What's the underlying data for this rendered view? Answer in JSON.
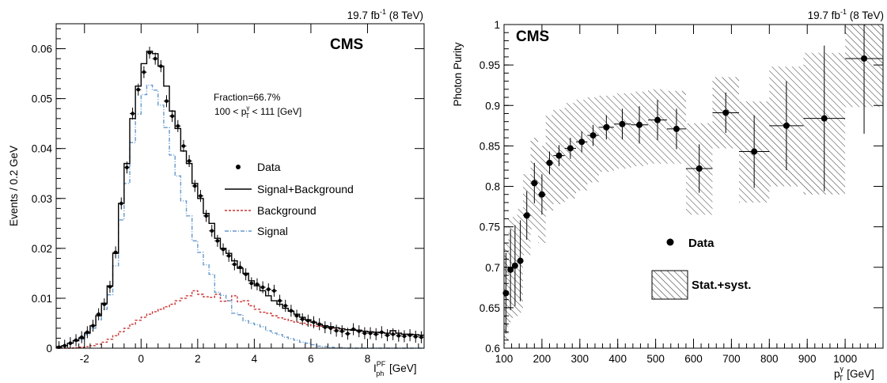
{
  "chart_data": [
    {
      "type": "line",
      "lumi_label": "19.7 fb",
      "lumi_sup": "-1",
      "lumi_energy": " (8 TeV)",
      "cms_label": "CMS",
      "xlabel_main": "I",
      "xlabel_sup": "PF",
      "xlabel_sub": "ph",
      "xlabel_unit": " [GeV]",
      "ylabel": "Events / 0.2 GeV",
      "xlim": [
        -3,
        10
      ],
      "ylim": [
        0,
        0.065
      ],
      "x_ticks": [
        -2,
        0,
        2,
        4,
        6,
        8
      ],
      "x_tick_labels": [
        "-2",
        "0",
        "2",
        "4",
        "6",
        "8"
      ],
      "y_ticks": [
        0,
        0.01,
        0.02,
        0.03,
        0.04,
        0.05,
        0.06
      ],
      "y_tick_labels": [
        "0",
        "0.01",
        "0.02",
        "0.03",
        "0.04",
        "0.05",
        "0.06"
      ],
      "annotation_line1": "Fraction=66.7%",
      "annotation_line2_pre": "100 < p",
      "annotation_line2_sup": "γ",
      "annotation_line2_sub": "T",
      "annotation_line2_post": " < 111 [GeV]",
      "legend": {
        "data": "Data",
        "total": "Signal+Background",
        "background": "Background",
        "signal": "Signal"
      },
      "bin_width": 0.2,
      "series_color": {
        "total": "#000000",
        "background": "#cc3333",
        "signal": "#6699cc",
        "data": "#000000"
      },
      "bin_edges_start": -3.0,
      "total": [
        0.0003,
        0.0005,
        0.001,
        0.0015,
        0.002,
        0.003,
        0.0045,
        0.0065,
        0.009,
        0.0125,
        0.019,
        0.029,
        0.037,
        0.046,
        0.0525,
        0.057,
        0.0595,
        0.059,
        0.0565,
        0.0525,
        0.0475,
        0.044,
        0.0395,
        0.037,
        0.033,
        0.03,
        0.027,
        0.025,
        0.022,
        0.02,
        0.019,
        0.0175,
        0.016,
        0.015,
        0.0135,
        0.0125,
        0.0115,
        0.0105,
        0.0095,
        0.0088,
        0.008,
        0.0074,
        0.0068,
        0.0062,
        0.0057,
        0.0052,
        0.0048,
        0.0045,
        0.0043,
        0.0041,
        0.0039,
        0.0037,
        0.0036,
        0.0036,
        0.0034,
        0.0033,
        0.0032,
        0.0031,
        0.003,
        0.0035,
        0.003,
        0.0028,
        0.0028,
        0.0027,
        0.0026
      ],
      "background": [
        0.0,
        0.0,
        0.0,
        0.0001,
        0.0002,
        0.0003,
        0.0005,
        0.0008,
        0.0012,
        0.0018,
        0.0025,
        0.0033,
        0.004,
        0.0048,
        0.0056,
        0.0062,
        0.0068,
        0.0073,
        0.0078,
        0.0083,
        0.0088,
        0.0095,
        0.01,
        0.0105,
        0.0115,
        0.0108,
        0.0103,
        0.0102,
        0.0108,
        0.0094,
        0.0095,
        0.0105,
        0.0093,
        0.0095,
        0.0085,
        0.0078,
        0.0072,
        0.007,
        0.0065,
        0.0061,
        0.0058,
        0.0055,
        0.0052,
        0.005,
        0.0047,
        0.0045,
        0.0044,
        0.0042,
        0.0041,
        0.004,
        0.0038,
        0.0037,
        0.0036,
        0.0036,
        0.0034,
        0.0033,
        0.0032,
        0.0031,
        0.003,
        0.0035,
        0.003,
        0.0028,
        0.0028,
        0.0027,
        0.0026
      ],
      "signal": [
        0.0003,
        0.0005,
        0.001,
        0.0014,
        0.0018,
        0.0027,
        0.004,
        0.0057,
        0.0078,
        0.0107,
        0.0165,
        0.0257,
        0.033,
        0.0412,
        0.0469,
        0.0508,
        0.0527,
        0.0517,
        0.0487,
        0.0442,
        0.0387,
        0.0345,
        0.0295,
        0.0265,
        0.0215,
        0.0192,
        0.0167,
        0.0148,
        0.0112,
        0.0106,
        0.0095,
        0.007,
        0.0067,
        0.0055,
        0.005,
        0.0047,
        0.0043,
        0.0035,
        0.003,
        0.0027,
        0.0022,
        0.0019,
        0.0016,
        0.0012,
        0.001,
        0.0007,
        0.0004,
        0.0003,
        0.0002,
        0.0001,
        0.0001,
        0.0,
        0.0,
        0.0,
        0.0,
        0.0,
        0.0,
        0.0,
        0.0,
        0.0,
        0.0,
        0.0,
        0.0,
        0.0,
        0.0
      ],
      "data": [
        0.0002,
        0.0005,
        0.001,
        0.0016,
        0.0022,
        0.0032,
        0.0045,
        0.0068,
        0.0088,
        0.0123,
        0.0192,
        0.029,
        0.0362,
        0.047,
        0.0518,
        0.0553,
        0.0592,
        0.058,
        0.0565,
        0.0495,
        0.0465,
        0.0445,
        0.0405,
        0.0375,
        0.0325,
        0.0305,
        0.0265,
        0.0235,
        0.0215,
        0.0198,
        0.0185,
        0.0168,
        0.0162,
        0.0148,
        0.013,
        0.0128,
        0.0122,
        0.0118,
        0.0115,
        0.0095,
        0.0085,
        0.0075,
        0.0065,
        0.0058,
        0.0055,
        0.0052,
        0.0048,
        0.0042,
        0.004,
        0.0035,
        0.0034,
        0.0029,
        0.0038,
        0.0034,
        0.003,
        0.003,
        0.0028,
        0.0032,
        0.0026,
        0.0028,
        0.0025,
        0.0024,
        0.0026,
        0.0023,
        0.0022
      ],
      "data_err": 0.0012
    },
    {
      "type": "scatter",
      "lumi_label": "19.7 fb",
      "lumi_sup": "-1",
      "lumi_energy": " (8 TeV)",
      "cms_label": "CMS",
      "ylabel": "Photon Purity",
      "xlabel_main": "p",
      "xlabel_sup": "γ",
      "xlabel_sub": "T",
      "xlabel_unit": " [GeV]",
      "xlim": [
        100,
        1100
      ],
      "ylim": [
        0.6,
        1.0
      ],
      "x_ticks": [
        100,
        200,
        300,
        400,
        500,
        600,
        700,
        800,
        900,
        1000
      ],
      "x_tick_labels": [
        "100",
        "200",
        "300",
        "400",
        "500",
        "600",
        "700",
        "800",
        "900",
        "1000"
      ],
      "y_ticks": [
        0.6,
        0.65,
        0.7,
        0.75,
        0.8,
        0.85,
        0.9,
        0.95,
        1.0
      ],
      "y_tick_labels": [
        "0.6",
        "0.65",
        "0.7",
        "0.75",
        "0.8",
        "0.85",
        "0.9",
        "0.95",
        "1"
      ],
      "legend": {
        "data": "Data",
        "band": "Stat.+syst."
      },
      "points": [
        {
          "xlo": 100,
          "xhi": 111,
          "x": 105,
          "y": 0.668,
          "ylo": 0.618,
          "yhi": 0.718,
          "blo": 0.605,
          "bhi": 0.73
        },
        {
          "xlo": 111,
          "xhi": 123,
          "x": 117,
          "y": 0.697,
          "ylo": 0.647,
          "yhi": 0.747,
          "blo": 0.632,
          "bhi": 0.76
        },
        {
          "xlo": 123,
          "xhi": 136,
          "x": 129,
          "y": 0.702,
          "ylo": 0.652,
          "yhi": 0.752,
          "blo": 0.638,
          "bhi": 0.765
        },
        {
          "xlo": 136,
          "xhi": 150,
          "x": 143,
          "y": 0.708,
          "ylo": 0.658,
          "yhi": 0.758,
          "blo": 0.644,
          "bhi": 0.772
        },
        {
          "xlo": 150,
          "xhi": 170,
          "x": 160,
          "y": 0.764,
          "ylo": 0.734,
          "yhi": 0.794,
          "blo": 0.715,
          "bhi": 0.815
        },
        {
          "xlo": 170,
          "xhi": 190,
          "x": 180,
          "y": 0.804,
          "ylo": 0.779,
          "yhi": 0.829,
          "blo": 0.747,
          "bhi": 0.86
        },
        {
          "xlo": 190,
          "xhi": 210,
          "x": 200,
          "y": 0.79,
          "ylo": 0.765,
          "yhi": 0.815,
          "blo": 0.73,
          "bhi": 0.85
        },
        {
          "xlo": 210,
          "xhi": 230,
          "x": 220,
          "y": 0.829,
          "ylo": 0.815,
          "yhi": 0.843,
          "blo": 0.77,
          "bhi": 0.888
        },
        {
          "xlo": 230,
          "xhi": 260,
          "x": 245,
          "y": 0.838,
          "ylo": 0.825,
          "yhi": 0.851,
          "blo": 0.778,
          "bhi": 0.895
        },
        {
          "xlo": 260,
          "xhi": 290,
          "x": 275,
          "y": 0.847,
          "ylo": 0.834,
          "yhi": 0.86,
          "blo": 0.785,
          "bhi": 0.903
        },
        {
          "xlo": 290,
          "xhi": 320,
          "x": 305,
          "y": 0.855,
          "ylo": 0.842,
          "yhi": 0.868,
          "blo": 0.795,
          "bhi": 0.907
        },
        {
          "xlo": 320,
          "xhi": 350,
          "x": 335,
          "y": 0.863,
          "ylo": 0.85,
          "yhi": 0.876,
          "blo": 0.805,
          "bhi": 0.91
        },
        {
          "xlo": 350,
          "xhi": 390,
          "x": 370,
          "y": 0.873,
          "ylo": 0.858,
          "yhi": 0.888,
          "blo": 0.818,
          "bhi": 0.912
        },
        {
          "xlo": 390,
          "xhi": 435,
          "x": 412,
          "y": 0.877,
          "ylo": 0.858,
          "yhi": 0.896,
          "blo": 0.822,
          "bhi": 0.915
        },
        {
          "xlo": 435,
          "xhi": 480,
          "x": 457,
          "y": 0.876,
          "ylo": 0.853,
          "yhi": 0.899,
          "blo": 0.825,
          "bhi": 0.917
        },
        {
          "xlo": 480,
          "xhi": 530,
          "x": 505,
          "y": 0.882,
          "ylo": 0.857,
          "yhi": 0.907,
          "blo": 0.828,
          "bhi": 0.92
        },
        {
          "xlo": 530,
          "xhi": 580,
          "x": 555,
          "y": 0.871,
          "ylo": 0.846,
          "yhi": 0.896,
          "blo": 0.828,
          "bhi": 0.918
        },
        {
          "xlo": 580,
          "xhi": 650,
          "x": 615,
          "y": 0.822,
          "ylo": 0.792,
          "yhi": 0.852,
          "blo": 0.765,
          "bhi": 0.878
        },
        {
          "xlo": 650,
          "xhi": 720,
          "x": 685,
          "y": 0.891,
          "ylo": 0.866,
          "yhi": 0.916,
          "blo": 0.847,
          "bhi": 0.935
        },
        {
          "xlo": 720,
          "xhi": 800,
          "x": 760,
          "y": 0.843,
          "ylo": 0.798,
          "yhi": 0.888,
          "blo": 0.78,
          "bhi": 0.905
        },
        {
          "xlo": 800,
          "xhi": 890,
          "x": 845,
          "y": 0.875,
          "ylo": 0.82,
          "yhi": 0.93,
          "blo": 0.8,
          "bhi": 0.948
        },
        {
          "xlo": 890,
          "xhi": 1000,
          "x": 945,
          "y": 0.884,
          "ylo": 0.794,
          "yhi": 0.974,
          "blo": 0.79,
          "bhi": 0.965
        },
        {
          "xlo": 1000,
          "xhi": 1100,
          "x": 1050,
          "y": 0.958,
          "ylo": 0.865,
          "yhi": 1.0,
          "blo": 0.898,
          "bhi": 1.0
        }
      ]
    }
  ]
}
